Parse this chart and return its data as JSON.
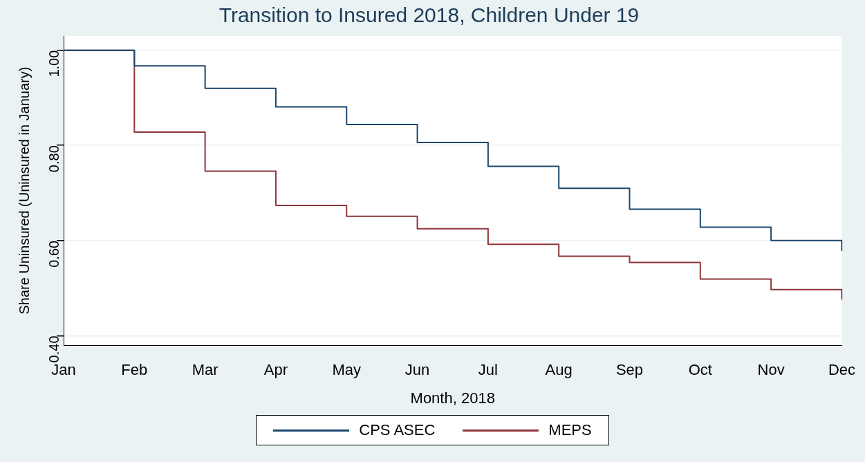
{
  "chart_data": {
    "type": "step",
    "title": "Transition to Insured 2018, Children Under 19",
    "xlabel": "Month, 2018",
    "ylabel": "Share Uninsured (Uninsured in January)",
    "categories": [
      "Jan",
      "Feb",
      "Mar",
      "Apr",
      "May",
      "Jun",
      "Jul",
      "Aug",
      "Sep",
      "Oct",
      "Nov",
      "Dec"
    ],
    "series": [
      {
        "name": "CPS ASEC",
        "color": "#1a476f",
        "values": [
          1.0,
          0.967,
          0.92,
          0.881,
          0.844,
          0.806,
          0.756,
          0.71,
          0.666,
          0.628,
          0.6,
          0.578
        ]
      },
      {
        "name": "MEPS",
        "color": "#90353b",
        "values": [
          1.0,
          0.828,
          0.746,
          0.674,
          0.651,
          0.625,
          0.592,
          0.567,
          0.554,
          0.519,
          0.497,
          0.476
        ]
      }
    ],
    "ylim": [
      0.38,
      1.03
    ],
    "yticks": [
      {
        "value": 0.4,
        "label": "0.40"
      },
      {
        "value": 0.6,
        "label": "0.60"
      },
      {
        "value": 0.8,
        "label": "0.80"
      },
      {
        "value": 1.0,
        "label": "1.00"
      }
    ],
    "grid": "y",
    "legend": "bottom",
    "marker": "none",
    "line_style": "solid"
  }
}
